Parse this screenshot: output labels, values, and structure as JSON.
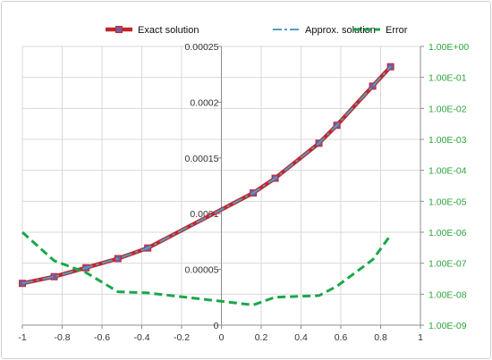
{
  "chart_data": {
    "type": "line",
    "xlim": [
      -1,
      1
    ],
    "x_ticks": [
      "-1",
      "-0.8",
      "-0.6",
      "-0.4",
      "-0.2",
      "0",
      "0.2",
      "0.4",
      "0.6",
      "0.8",
      "1"
    ],
    "x_tick_values": [
      -1,
      -0.8,
      -0.6,
      -0.4,
      -0.2,
      0,
      0.2,
      0.4,
      0.6,
      0.8,
      1
    ],
    "ylim": [
      0,
      0.00025
    ],
    "y_ticks": [
      "0",
      "0.00005",
      "0.0001",
      "0.00015",
      "0.0002",
      "0.00025"
    ],
    "y_tick_values": [
      0,
      5e-05,
      0.0001,
      0.00015,
      0.0002,
      0.00025
    ],
    "y2_scale": "log",
    "y2lim": [
      1e-09,
      1
    ],
    "y2_ticks": [
      "1.00E-09",
      "1.00E-08",
      "1.00E-07",
      "1.00E-06",
      "1.00E-05",
      "1.00E-04",
      "1.00E-03",
      "1.00E-02",
      "1.00E-01",
      "1.00E+00"
    ],
    "y2_tick_values": [
      1e-09,
      1e-08,
      1e-07,
      1e-06,
      1e-05,
      0.0001,
      0.001,
      0.01,
      0.1,
      1
    ],
    "grid": true,
    "legend_position": "top",
    "series": [
      {
        "name": "Exact solution",
        "color": "#c0282d",
        "axis": "left",
        "marker": "square",
        "x": [
          -1,
          -0.84,
          -0.68,
          -0.52,
          -0.37,
          0.16,
          0.27,
          0.49,
          0.58,
          0.76,
          0.85
        ],
        "y": [
          3.75e-05,
          4.35e-05,
          5.15e-05,
          5.97e-05,
          6.92e-05,
          0.0001186,
          0.0001318,
          0.0001632,
          0.0001793,
          0.0002144,
          0.0002318
        ]
      },
      {
        "name": "Approx. solution",
        "color": "#4f9fc6",
        "axis": "left",
        "marker": "none",
        "x": [
          -1,
          -0.84,
          -0.68,
          -0.52,
          -0.37,
          0.16,
          0.27,
          0.49,
          0.58,
          0.76,
          0.85
        ],
        "y": [
          3.75e-05,
          4.35e-05,
          5.15e-05,
          5.97e-05,
          6.92e-05,
          0.0001186,
          0.0001318,
          0.0001632,
          0.0001793,
          0.0002144,
          0.0002318
        ]
      },
      {
        "name": "Error",
        "color": "#1aa74a",
        "axis": "right",
        "marker": "none",
        "x": [
          -1,
          -0.84,
          -0.68,
          -0.52,
          -0.37,
          0.16,
          0.27,
          0.49,
          0.58,
          0.76,
          0.85
        ],
        "y": [
          1e-06,
          1.2e-07,
          5e-08,
          1.2e-08,
          1.1e-08,
          4.5e-09,
          8e-09,
          9e-09,
          1.8e-08,
          1.3e-07,
          8e-07
        ]
      }
    ]
  }
}
